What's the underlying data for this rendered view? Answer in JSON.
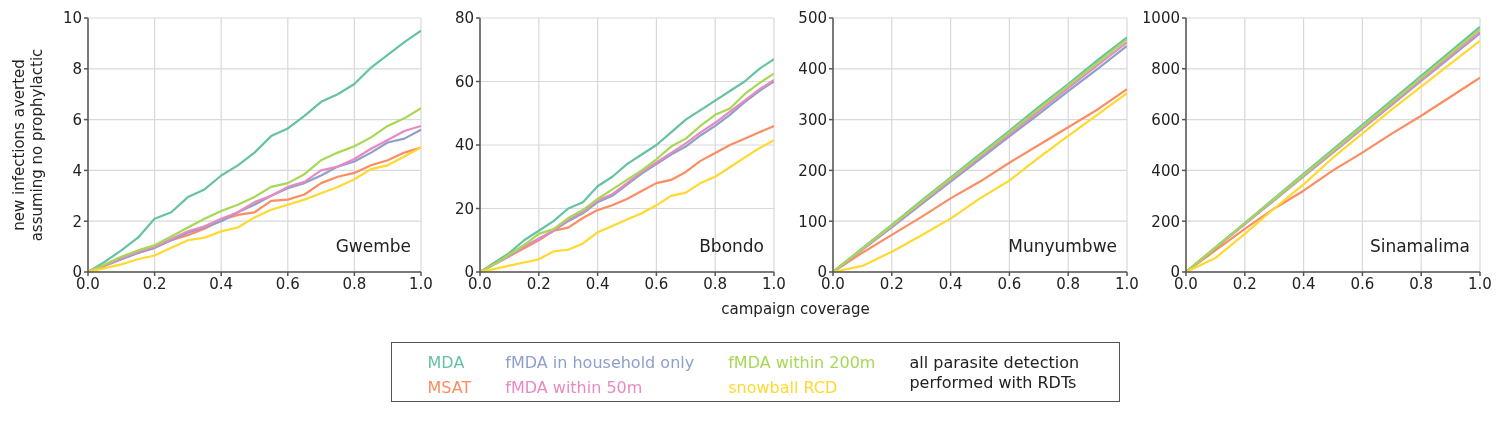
{
  "chart_data": [
    {
      "type": "line",
      "title": "Gwembe",
      "ylabel": "new infections averted assuming no prophylactic",
      "legend": "bottom",
      "grid": true,
      "line_style": "solid",
      "marker": "none",
      "x": [
        0,
        0.05,
        0.1,
        0.15,
        0.2,
        0.25,
        0.3,
        0.35,
        0.4,
        0.45,
        0.5,
        0.55,
        0.6,
        0.65,
        0.7,
        0.75,
        0.8,
        0.85,
        0.9,
        0.95,
        1.0
      ],
      "xlim": [
        0,
        1
      ],
      "xticks": [
        {
          "value": 0,
          "label": "0.0"
        },
        {
          "value": 0.2,
          "label": "0.2"
        },
        {
          "value": 0.4,
          "label": "0.4"
        },
        {
          "value": 0.6,
          "label": "0.6"
        },
        {
          "value": 0.8,
          "label": "0.8"
        },
        {
          "value": 1,
          "label": "1.0"
        }
      ],
      "ylim": [
        0,
        10
      ],
      "yticks": [
        0,
        2,
        4,
        6,
        8,
        10
      ],
      "series": [
        {
          "name": "MDA",
          "color": "#66c2a5",
          "values": [
            0,
            0.4,
            0.85,
            1.35,
            2.1,
            2.35,
            2.95,
            3.25,
            3.8,
            4.2,
            4.7,
            5.35,
            5.65,
            6.15,
            6.7,
            7.0,
            7.4,
            8.05,
            8.55,
            9.05,
            9.5
          ]
        },
        {
          "name": "MSAT",
          "color": "#fc8d62",
          "values": [
            0,
            0.25,
            0.5,
            0.75,
            0.95,
            1.25,
            1.45,
            1.7,
            2.05,
            2.25,
            2.35,
            2.8,
            2.85,
            3.05,
            3.5,
            3.75,
            3.9,
            4.2,
            4.4,
            4.7,
            4.9
          ]
        },
        {
          "name": "fMDA in household only",
          "color": "#8da0cb",
          "values": [
            0,
            0.25,
            0.5,
            0.75,
            0.95,
            1.25,
            1.55,
            1.75,
            2.0,
            2.35,
            2.65,
            3.0,
            3.3,
            3.5,
            3.8,
            4.15,
            4.35,
            4.7,
            5.1,
            5.25,
            5.6
          ]
        },
        {
          "name": "fMDA within 50m",
          "color": "#e78ac3",
          "values": [
            0,
            0.25,
            0.55,
            0.8,
            1.0,
            1.3,
            1.6,
            1.8,
            2.1,
            2.35,
            2.75,
            3.0,
            3.35,
            3.55,
            4.0,
            4.15,
            4.45,
            4.85,
            5.2,
            5.55,
            5.75
          ]
        },
        {
          "name": "fMDA within 200m",
          "color": "#a6d854",
          "values": [
            0,
            0.3,
            0.6,
            0.85,
            1.05,
            1.4,
            1.75,
            2.1,
            2.4,
            2.65,
            2.95,
            3.35,
            3.5,
            3.85,
            4.4,
            4.7,
            4.95,
            5.3,
            5.75,
            6.05,
            6.45
          ]
        },
        {
          "name": "snowball RCD",
          "color": "#ffd92f",
          "values": [
            0,
            0.15,
            0.3,
            0.5,
            0.65,
            0.95,
            1.25,
            1.35,
            1.6,
            1.75,
            2.15,
            2.45,
            2.65,
            2.85,
            3.1,
            3.35,
            3.65,
            4.05,
            4.2,
            4.55,
            4.9
          ]
        }
      ]
    },
    {
      "type": "line",
      "title": "Bbondo",
      "xlabel": "campaign coverage",
      "annotations": [
        "all parasite detection performed with RDTs"
      ],
      "grid": true,
      "line_style": "solid",
      "marker": "none",
      "x": [
        0,
        0.05,
        0.1,
        0.15,
        0.2,
        0.25,
        0.3,
        0.35,
        0.4,
        0.45,
        0.5,
        0.55,
        0.6,
        0.65,
        0.7,
        0.75,
        0.8,
        0.85,
        0.9,
        0.95,
        1.0
      ],
      "xlim": [
        0,
        1
      ],
      "xticks": [
        {
          "value": 0,
          "label": "0.0"
        },
        {
          "value": 0.2,
          "label": "0.2"
        },
        {
          "value": 0.4,
          "label": "0.4"
        },
        {
          "value": 0.6,
          "label": "0.6"
        },
        {
          "value": 0.8,
          "label": "0.8"
        },
        {
          "value": 1,
          "label": "1.0"
        }
      ],
      "ylim": [
        0,
        80
      ],
      "yticks": [
        0,
        20,
        40,
        60,
        80
      ],
      "series": [
        {
          "color": "#66c2a5",
          "values": [
            0,
            3,
            6,
            10,
            13,
            16,
            20,
            22,
            27,
            30,
            34,
            37,
            40,
            44,
            48,
            51,
            54,
            57,
            60,
            64,
            67
          ]
        },
        {
          "color": "#fc8d62",
          "values": [
            0,
            2.5,
            5,
            7.5,
            10,
            13,
            14,
            17,
            19.5,
            21,
            23,
            25.5,
            28,
            29,
            31.5,
            35,
            37.5,
            40,
            42,
            44,
            46
          ]
        },
        {
          "color": "#8da0cb",
          "values": [
            0,
            2.5,
            5,
            8,
            10.5,
            13,
            16,
            18.5,
            22,
            24,
            27.5,
            31,
            34,
            37,
            39.5,
            43,
            46,
            49.5,
            53.5,
            57,
            60
          ]
        },
        {
          "color": "#e78ac3",
          "values": [
            0,
            2.5,
            5,
            8,
            10.5,
            13,
            16.5,
            19,
            22.5,
            24.5,
            28,
            31.5,
            34.5,
            37.5,
            40.5,
            44,
            47,
            50.5,
            54,
            57.5,
            60.5
          ]
        },
        {
          "color": "#a6d854",
          "values": [
            0,
            2.5,
            5.5,
            8.5,
            12,
            13.5,
            17,
            19.5,
            23,
            26,
            29,
            32,
            35.5,
            39.5,
            42,
            46,
            49.5,
            51.5,
            56,
            59.5,
            62.5
          ]
        },
        {
          "color": "#ffd92f",
          "values": [
            0,
            1,
            2,
            3,
            4,
            6.5,
            7,
            9,
            12.5,
            14.5,
            16.5,
            18.5,
            21,
            24,
            25,
            28,
            30,
            33,
            36,
            39,
            41.5
          ]
        }
      ]
    },
    {
      "type": "line",
      "title": "Munyumbwe",
      "grid": true,
      "line_style": "solid",
      "marker": "none",
      "x": [
        0,
        0.1,
        0.2,
        0.3,
        0.4,
        0.5,
        0.6,
        0.7,
        0.8,
        0.9,
        1.0
      ],
      "xlim": [
        0,
        1
      ],
      "xticks": [
        {
          "value": 0,
          "label": "0.0"
        },
        {
          "value": 0.2,
          "label": "0.2"
        },
        {
          "value": 0.4,
          "label": "0.4"
        },
        {
          "value": 0.6,
          "label": "0.6"
        },
        {
          "value": 0.8,
          "label": "0.8"
        },
        {
          "value": 1,
          "label": "1.0"
        }
      ],
      "ylim": [
        0,
        500
      ],
      "yticks": [
        0,
        100,
        200,
        300,
        400,
        500
      ],
      "series": [
        {
          "color": "#66c2a5",
          "values": [
            0,
            47,
            93,
            140,
            186,
            232,
            278,
            325,
            370,
            417,
            462
          ]
        },
        {
          "color": "#fc8d62",
          "values": [
            0,
            38,
            73,
            108,
            145,
            178,
            215,
            250,
            285,
            320,
            360
          ]
        },
        {
          "color": "#8da0cb",
          "values": [
            0,
            44,
            88,
            133,
            178,
            222,
            267,
            311,
            356,
            400,
            445
          ]
        },
        {
          "color": "#e78ac3",
          "values": [
            0,
            45,
            90,
            136,
            181,
            226,
            271,
            316,
            362,
            407,
            452
          ]
        },
        {
          "color": "#a6d854",
          "values": [
            0,
            46,
            92,
            138,
            184,
            229,
            275,
            321,
            367,
            412,
            458
          ]
        },
        {
          "color": "#ffd92f",
          "values": [
            0,
            12,
            40,
            72,
            105,
            145,
            180,
            225,
            268,
            310,
            352
          ]
        }
      ]
    },
    {
      "type": "line",
      "title": "Sinamalima",
      "grid": true,
      "line_style": "solid",
      "marker": "none",
      "x": [
        0,
        0.1,
        0.2,
        0.3,
        0.4,
        0.5,
        0.6,
        0.7,
        0.8,
        0.9,
        1.0
      ],
      "xlim": [
        0,
        1
      ],
      "xticks": [
        {
          "value": 0,
          "label": "0.0"
        },
        {
          "value": 0.2,
          "label": "0.2"
        },
        {
          "value": 0.4,
          "label": "0.4"
        },
        {
          "value": 0.6,
          "label": "0.6"
        },
        {
          "value": 0.8,
          "label": "0.8"
        },
        {
          "value": 1,
          "label": "1.0"
        }
      ],
      "ylim": [
        0,
        1000
      ],
      "yticks": [
        0,
        200,
        400,
        600,
        800,
        1000
      ],
      "series": [
        {
          "color": "#66c2a5",
          "values": [
            0,
            97,
            193,
            290,
            386,
            483,
            579,
            676,
            772,
            869,
            965
          ]
        },
        {
          "color": "#fc8d62",
          "values": [
            0,
            85,
            170,
            250,
            320,
            400,
            470,
            545,
            615,
            690,
            765
          ]
        },
        {
          "color": "#8da0cb",
          "values": [
            0,
            94,
            188,
            282,
            376,
            470,
            564,
            658,
            752,
            846,
            940
          ]
        },
        {
          "color": "#e78ac3",
          "values": [
            0,
            95,
            189,
            284,
            378,
            473,
            567,
            662,
            756,
            851,
            945
          ]
        },
        {
          "color": "#a6d854",
          "values": [
            0,
            96,
            191,
            287,
            382,
            478,
            573,
            669,
            764,
            860,
            955
          ]
        },
        {
          "color": "#ffd92f",
          "values": [
            0,
            55,
            150,
            250,
            345,
            450,
            545,
            640,
            730,
            820,
            910
          ]
        }
      ]
    }
  ]
}
